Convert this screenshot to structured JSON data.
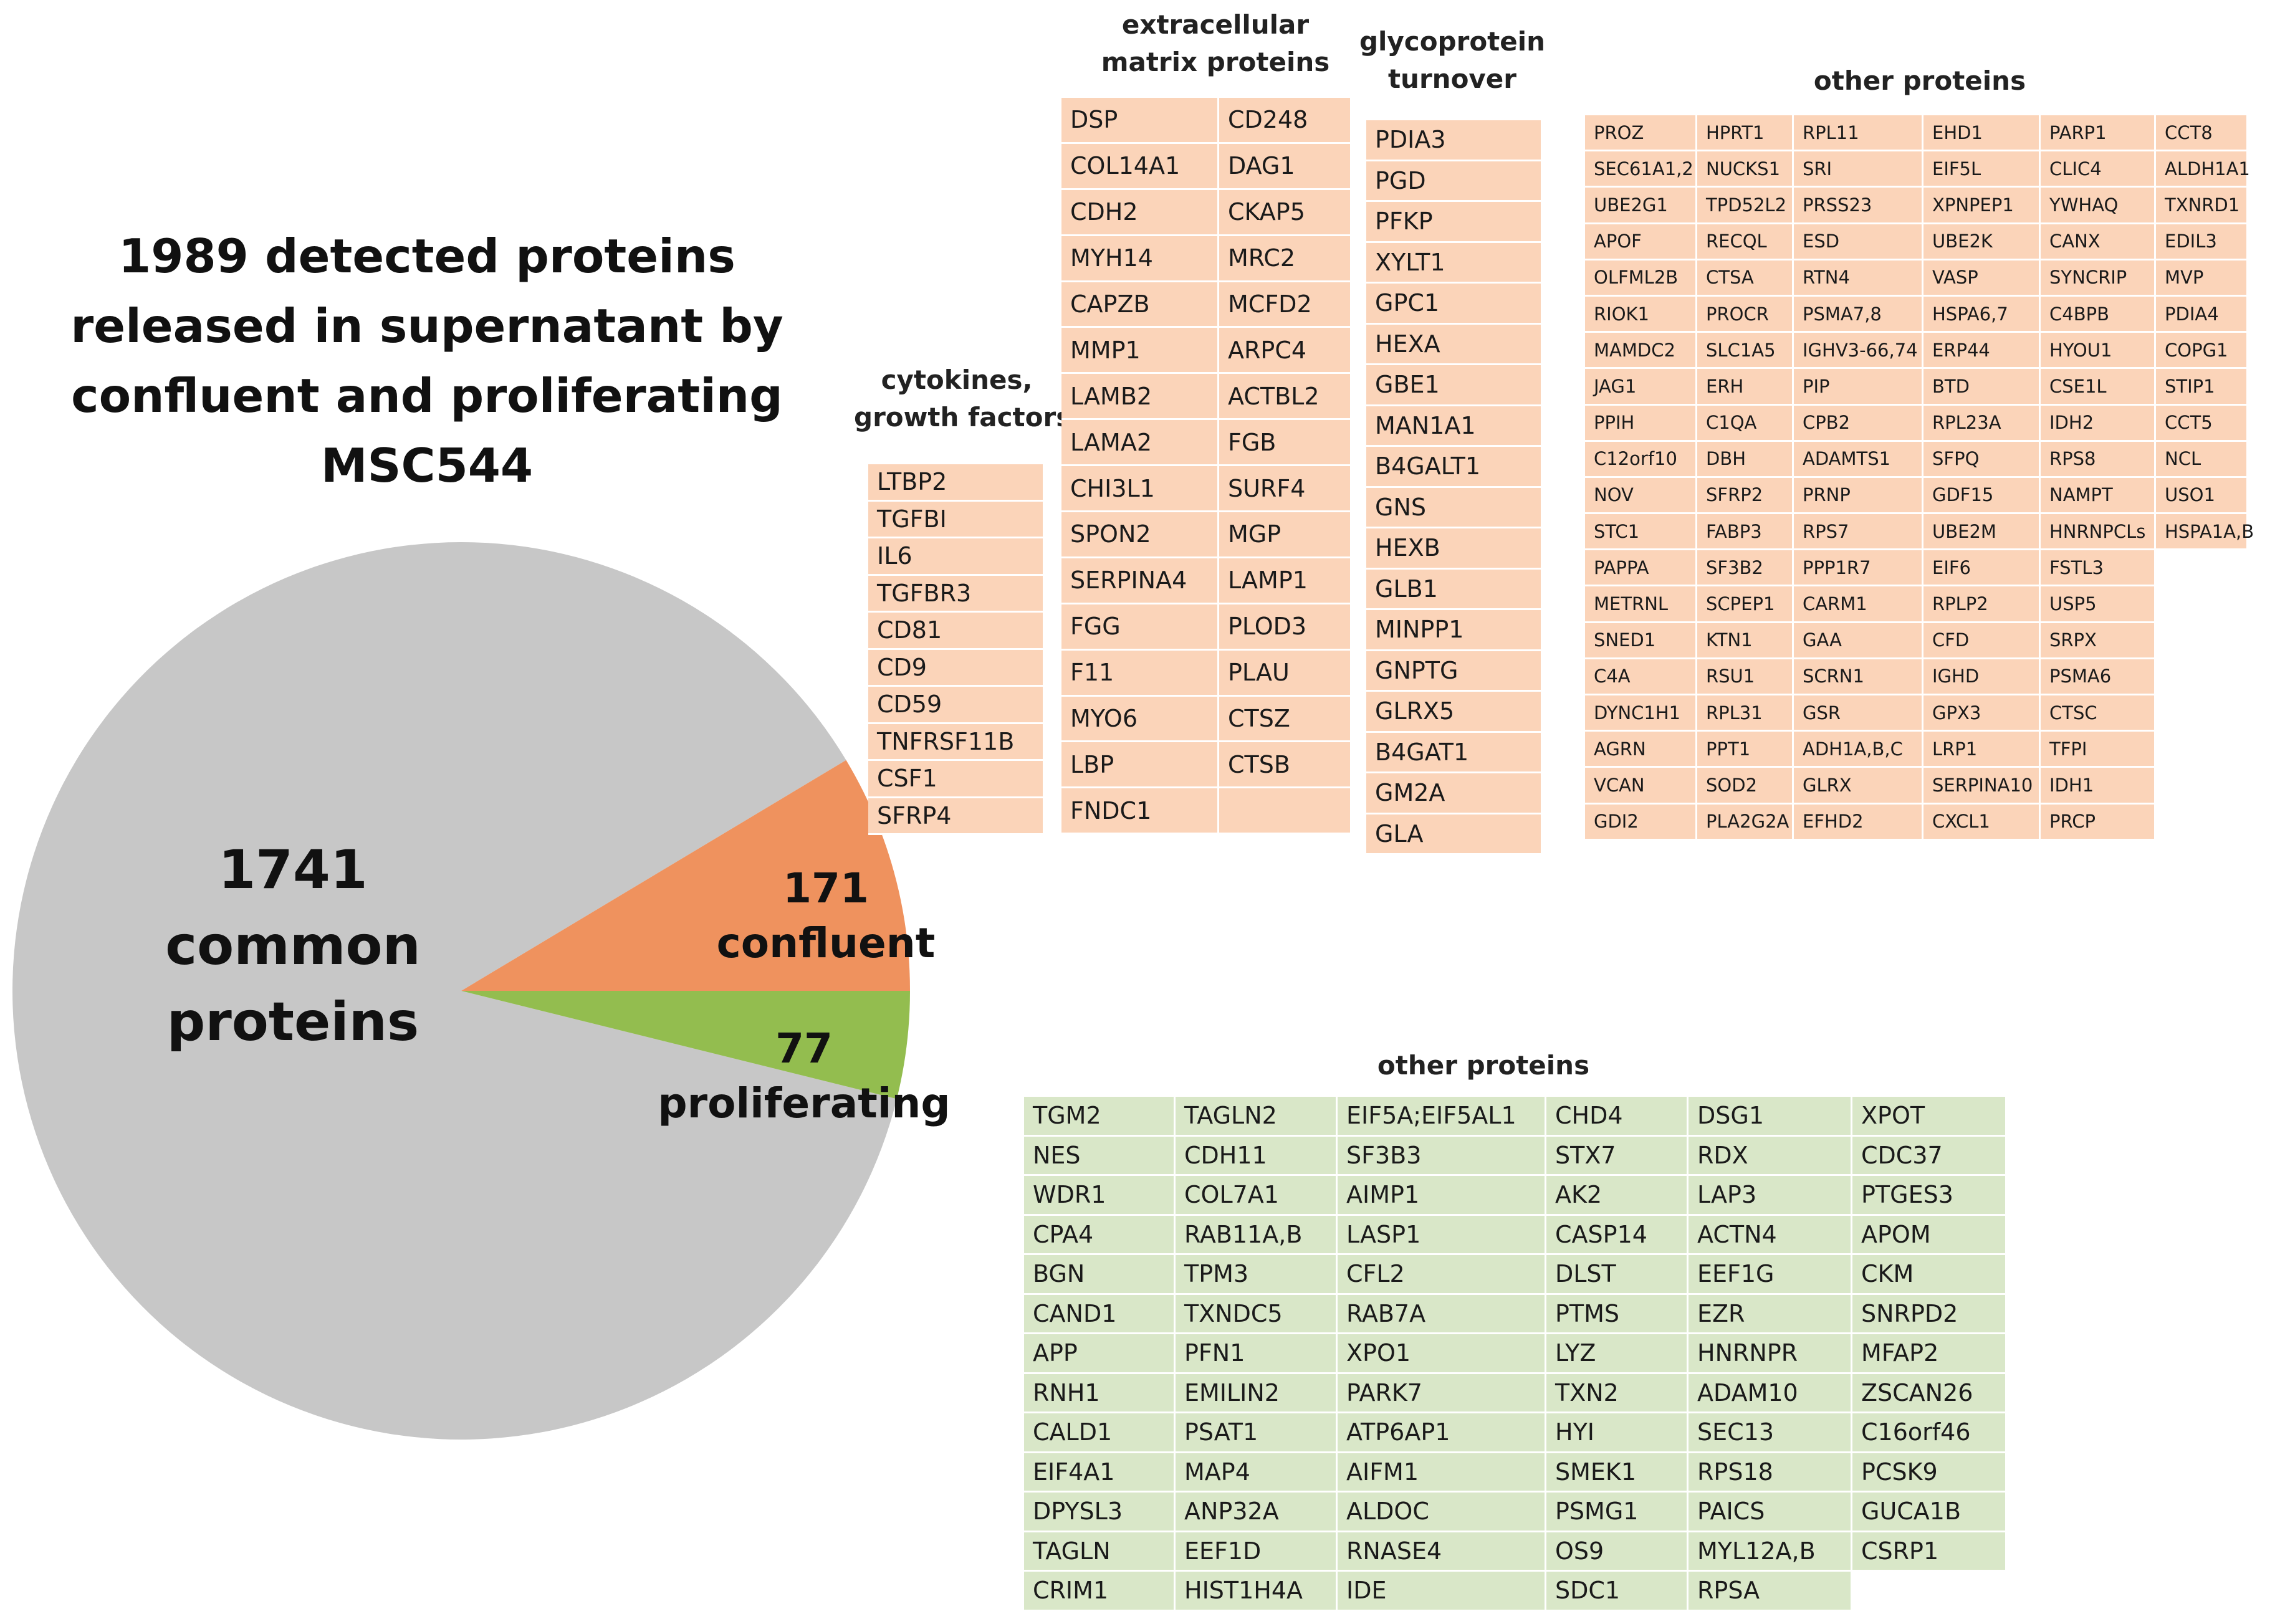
{
  "chart_data": {
    "type": "pie",
    "title_lines": [
      "1989 detected proteins",
      "released in supernatant by",
      "confluent and proliferating",
      "MSC544"
    ],
    "slices": [
      {
        "label_lines": [
          "1741",
          "common",
          "proteins"
        ],
        "value": 1741,
        "color": "#c7c7c7"
      },
      {
        "label_lines": [
          "171",
          "confluent"
        ],
        "value": 171,
        "color": "#ef925e"
      },
      {
        "label_lines": [
          "77",
          "proliferating"
        ],
        "value": 77,
        "color": "#93bd4f"
      }
    ]
  },
  "tables": {
    "cytokines": {
      "header": [
        "cytokines,",
        "growth factors"
      ],
      "rows": [
        [
          "LTBP2"
        ],
        [
          "TGFBI"
        ],
        [
          "IL6"
        ],
        [
          "TGFBR3"
        ],
        [
          "CD81"
        ],
        [
          "CD9"
        ],
        [
          "CD59"
        ],
        [
          "TNFRSF11B"
        ],
        [
          "CSF1"
        ],
        [
          "SFRP4"
        ]
      ]
    },
    "ecm": {
      "header": [
        "extracellular",
        "matrix proteins"
      ],
      "rows": [
        [
          "DSP",
          "CD248"
        ],
        [
          "COL14A1",
          "DAG1"
        ],
        [
          "CDH2",
          "CKAP5"
        ],
        [
          "MYH14",
          "MRC2"
        ],
        [
          "CAPZB",
          "MCFD2"
        ],
        [
          "MMP1",
          "ARPC4"
        ],
        [
          "LAMB2",
          "ACTBL2"
        ],
        [
          "LAMA2",
          "FGB"
        ],
        [
          "CHI3L1",
          "SURF4"
        ],
        [
          "SPON2",
          "MGP"
        ],
        [
          "SERPINA4",
          "LAMP1"
        ],
        [
          "FGG",
          "PLOD3"
        ],
        [
          "F11",
          "PLAU"
        ],
        [
          "MYO6",
          "CTSZ"
        ],
        [
          "LBP",
          "CTSB"
        ],
        [
          "FNDC1",
          ""
        ]
      ]
    },
    "glyco": {
      "header": [
        "glycoprotein",
        "turnover"
      ],
      "rows": [
        [
          "PDIA3"
        ],
        [
          "PGD"
        ],
        [
          "PFKP"
        ],
        [
          "XYLT1"
        ],
        [
          "GPC1"
        ],
        [
          "HEXA"
        ],
        [
          "GBE1"
        ],
        [
          "MAN1A1"
        ],
        [
          "B4GALT1"
        ],
        [
          "GNS"
        ],
        [
          "HEXB"
        ],
        [
          "GLB1"
        ],
        [
          "MINPP1"
        ],
        [
          "GNPTG"
        ],
        [
          "GLRX5"
        ],
        [
          "B4GAT1"
        ],
        [
          "GM2A"
        ],
        [
          "GLA"
        ]
      ]
    },
    "other_confluent": {
      "header": [
        "other proteins"
      ],
      "rows": [
        [
          "PROZ",
          "HPRT1",
          "RPL11",
          "EHD1",
          "PARP1",
          "CCT8"
        ],
        [
          "SEC61A1,2",
          "NUCKS1",
          "SRI",
          "EIF5L",
          "CLIC4",
          "ALDH1A1"
        ],
        [
          "UBE2G1",
          "TPD52L2",
          "PRSS23",
          "XPNPEP1",
          "YWHAQ",
          "TXNRD1"
        ],
        [
          "APOF",
          "RECQL",
          "ESD",
          "UBE2K",
          "CANX",
          "EDIL3"
        ],
        [
          "OLFML2B",
          "CTSA",
          "RTN4",
          "VASP",
          "SYNCRIP",
          "MVP"
        ],
        [
          "RIOK1",
          "PROCR",
          "PSMA7,8",
          "HSPA6,7",
          "C4BPB",
          "PDIA4"
        ],
        [
          "MAMDC2",
          "SLC1A5",
          "IGHV3-66,74",
          "ERP44",
          "HYOU1",
          "COPG1"
        ],
        [
          "JAG1",
          "ERH",
          "PIP",
          "BTD",
          "CSE1L",
          "STIP1"
        ],
        [
          "PPIH",
          "C1QA",
          "CPB2",
          "RPL23A",
          "IDH2",
          "CCT5"
        ],
        [
          "C12orf10",
          "DBH",
          "ADAMTS1",
          "SFPQ",
          "RPS8",
          "NCL"
        ],
        [
          "NOV",
          "SFRP2",
          "PRNP",
          "GDF15",
          "NAMPT",
          "USO1"
        ],
        [
          "STC1",
          "FABP3",
          "RPS7",
          "UBE2M",
          "HNRNPCLs",
          "HSPA1A,B"
        ],
        [
          "PAPPA",
          "SF3B2",
          "PPP1R7",
          "EIF6",
          "FSTL3"
        ],
        [
          "METRNL",
          "SCPEP1",
          "CARM1",
          "RPLP2",
          "USP5"
        ],
        [
          "SNED1",
          "KTN1",
          "GAA",
          "CFD",
          "SRPX"
        ],
        [
          "C4A",
          "RSU1",
          "SCRN1",
          "IGHD",
          "PSMA6"
        ],
        [
          "DYNC1H1",
          "RPL31",
          "GSR",
          "GPX3",
          "CTSC"
        ],
        [
          "AGRN",
          "PPT1",
          "ADH1A,B,C",
          "LRP1",
          "TFPI"
        ],
        [
          "VCAN",
          "SOD2",
          "GLRX",
          "SERPINA10",
          "IDH1"
        ],
        [
          "GDI2",
          "PLA2G2A",
          "EFHD2",
          "CXCL1",
          "PRCP"
        ]
      ]
    },
    "other_proliferating": {
      "header": [
        "other proteins"
      ],
      "rows": [
        [
          "TGM2",
          "TAGLN2",
          "EIF5A;EIF5AL1",
          "CHD4",
          "DSG1",
          "XPOT"
        ],
        [
          "NES",
          "CDH11",
          "SF3B3",
          "STX7",
          "RDX",
          "CDC37"
        ],
        [
          "WDR1",
          "COL7A1",
          "AIMP1",
          "AK2",
          "LAP3",
          "PTGES3"
        ],
        [
          "CPA4",
          "RAB11A,B",
          "LASP1",
          "CASP14",
          "ACTN4",
          "APOM"
        ],
        [
          "BGN",
          "TPM3",
          "CFL2",
          "DLST",
          "EEF1G",
          "CKM"
        ],
        [
          "CAND1",
          "TXNDC5",
          "RAB7A",
          "PTMS",
          "EZR",
          "SNRPD2"
        ],
        [
          "APP",
          "PFN1",
          "XPO1",
          "LYZ",
          "HNRNPR",
          "MFAP2"
        ],
        [
          "RNH1",
          "EMILIN2",
          "PARK7",
          "TXN2",
          "ADAM10",
          "ZSCAN26"
        ],
        [
          "CALD1",
          "PSAT1",
          "ATP6AP1",
          "HYI",
          "SEC13",
          "C16orf46"
        ],
        [
          "EIF4A1",
          "MAP4",
          "AIFM1",
          "SMEK1",
          "RPS18",
          "PCSK9"
        ],
        [
          "DPYSL3",
          "ANP32A",
          "ALDOC",
          "PSMG1",
          "PAICS",
          "GUCA1B"
        ],
        [
          "TAGLN",
          "EEF1D",
          "RNASE4",
          "OS9",
          "MYL12A,B",
          "CSRP1"
        ],
        [
          "CRIM1",
          "HIST1H4A",
          "IDE",
          "SDC1",
          "RPSA"
        ]
      ]
    }
  }
}
